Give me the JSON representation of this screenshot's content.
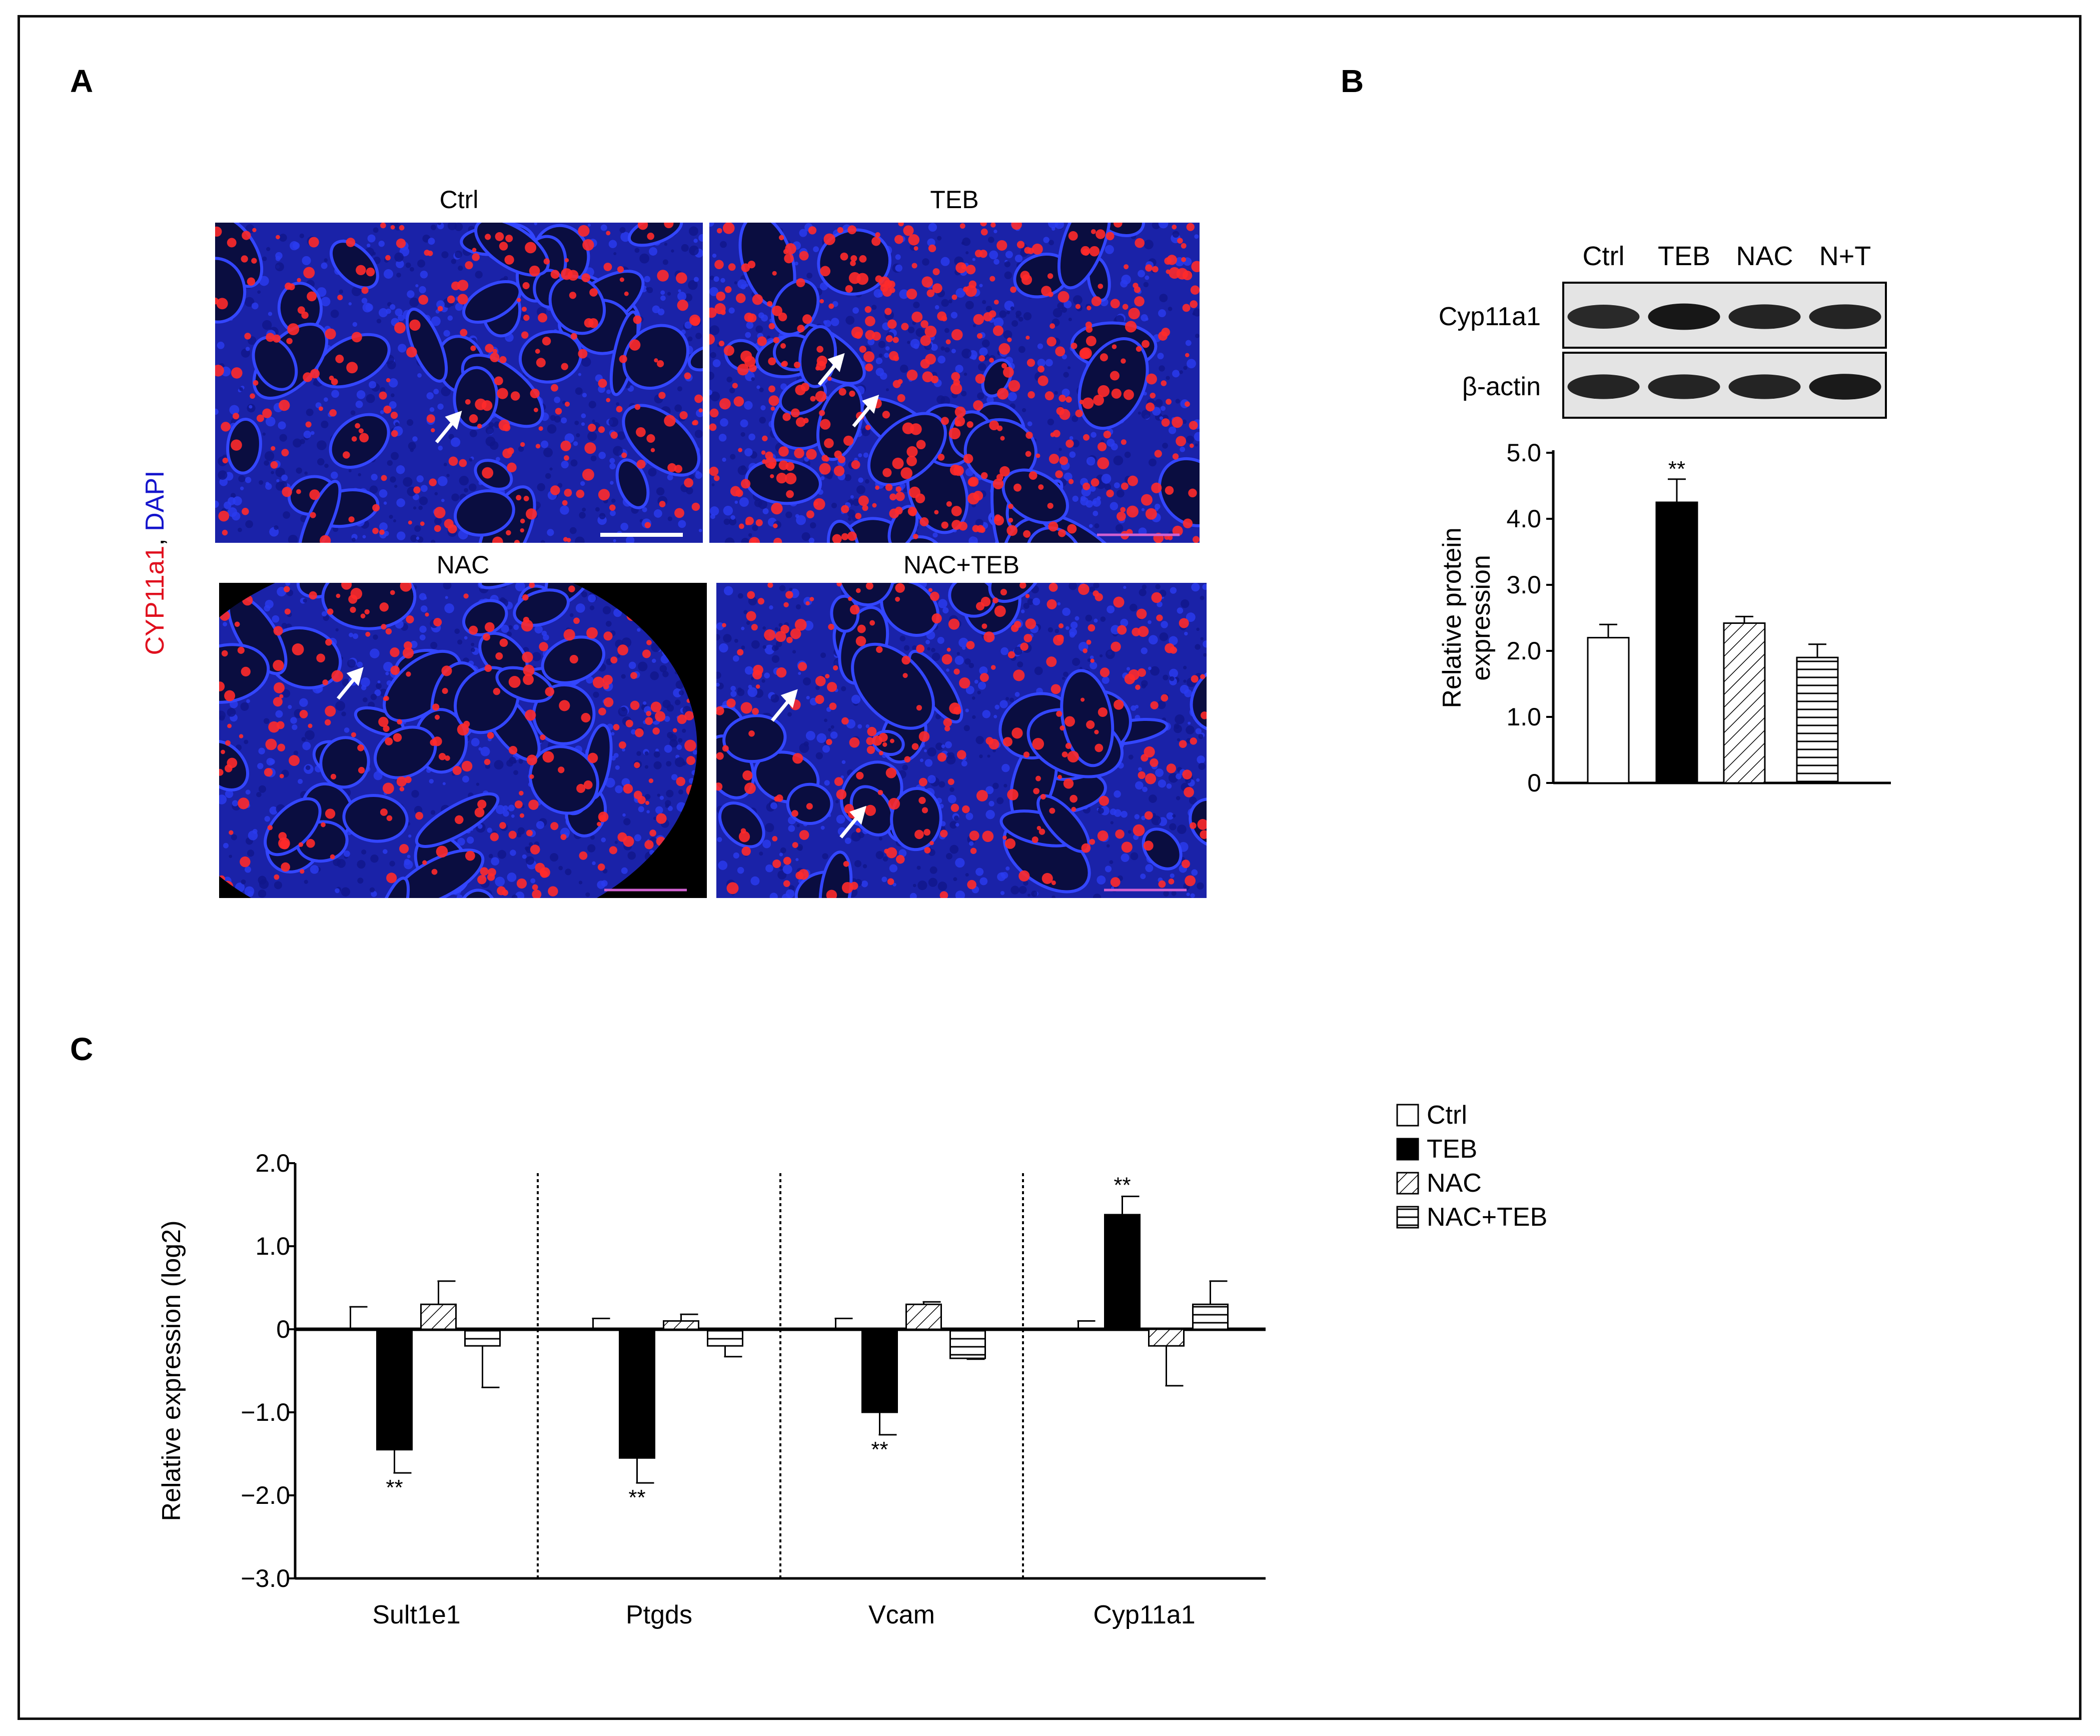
{
  "panels": {
    "a": "A",
    "b": "B",
    "c": "C"
  },
  "micrographs": [
    {
      "title": "Ctrl",
      "seed": 11,
      "density": 0.55
    },
    {
      "title": "TEB",
      "seed": 23,
      "density": 1.0
    },
    {
      "title": "NAC",
      "seed": 37,
      "density": 0.6
    },
    {
      "title": "NAC+TEB",
      "seed": 51,
      "density": 0.6
    }
  ],
  "stain_label": {
    "red": "CYP11a1",
    "sep": ", ",
    "blue": "DAPI"
  },
  "colors": {
    "red_stain": "#ff2a2a",
    "blue_stain": "#1a2bd6",
    "background": "#000000"
  },
  "blot": {
    "lanes": [
      "Ctrl",
      "TEB",
      "NAC",
      "N+T"
    ],
    "rows": [
      {
        "label": "Cyp11a1",
        "intensity": [
          0.75,
          0.95,
          0.8,
          0.8
        ]
      },
      {
        "label": "β-actin",
        "intensity": [
          0.8,
          0.8,
          0.8,
          0.9
        ]
      }
    ]
  },
  "chart_data": [
    {
      "type": "bar",
      "panel": "B",
      "categories": [
        "Ctrl",
        "TEB",
        "NAC",
        "N+T"
      ],
      "values": [
        2.2,
        4.25,
        2.42,
        1.9
      ],
      "errors": [
        0.2,
        0.35,
        0.1,
        0.2
      ],
      "fills": [
        "white",
        "black",
        "diagonal",
        "horizontal"
      ],
      "significance": [
        "",
        "**",
        "",
        ""
      ],
      "ylabel": "Relative protein expression",
      "ylabel_lines": [
        "Relative protein",
        "expression"
      ],
      "yticks": [
        "0",
        "1.0",
        "2.0",
        "3.0",
        "4.0",
        "5.0"
      ],
      "ylim": [
        0,
        5
      ]
    },
    {
      "type": "bar",
      "panel": "C",
      "categories": [
        "Sult1e1",
        "Ptgds",
        "Vcam",
        "Cyp11a1"
      ],
      "series": [
        {
          "name": "Ctrl",
          "fill": "white",
          "values": [
            0,
            0,
            0,
            0
          ],
          "errors": [
            0.27,
            0.13,
            0.13,
            0.1
          ]
        },
        {
          "name": "TEB",
          "fill": "black",
          "values": [
            -1.45,
            -1.55,
            -1.0,
            1.38
          ],
          "errors": [
            0.28,
            0.3,
            0.27,
            0.22
          ]
        },
        {
          "name": "NAC",
          "fill": "diagonal",
          "values": [
            0.3,
            0.1,
            0.3,
            -0.2
          ],
          "errors": [
            0.28,
            0.08,
            0.03,
            0.48
          ]
        },
        {
          "name": "NAC+TEB",
          "fill": "horizontal",
          "values": [
            -0.2,
            -0.2,
            -0.35,
            0.3
          ],
          "errors": [
            0.5,
            0.13,
            0.01,
            0.28
          ]
        }
      ],
      "significance": [
        {
          "category": "Sult1e1",
          "series": "TEB",
          "text": "**"
        },
        {
          "category": "Ptgds",
          "series": "TEB",
          "text": "**"
        },
        {
          "category": "Vcam",
          "series": "TEB",
          "text": "**"
        },
        {
          "category": "Cyp11a1",
          "series": "TEB",
          "text": "**"
        }
      ],
      "ylabel": "Relative expression (log2)",
      "yticks": [
        "−3.0",
        "−2.0",
        "−1.0",
        "0",
        "1.0",
        "2.0"
      ],
      "ylim": [
        -3,
        2
      ],
      "legend_position": "right"
    }
  ]
}
